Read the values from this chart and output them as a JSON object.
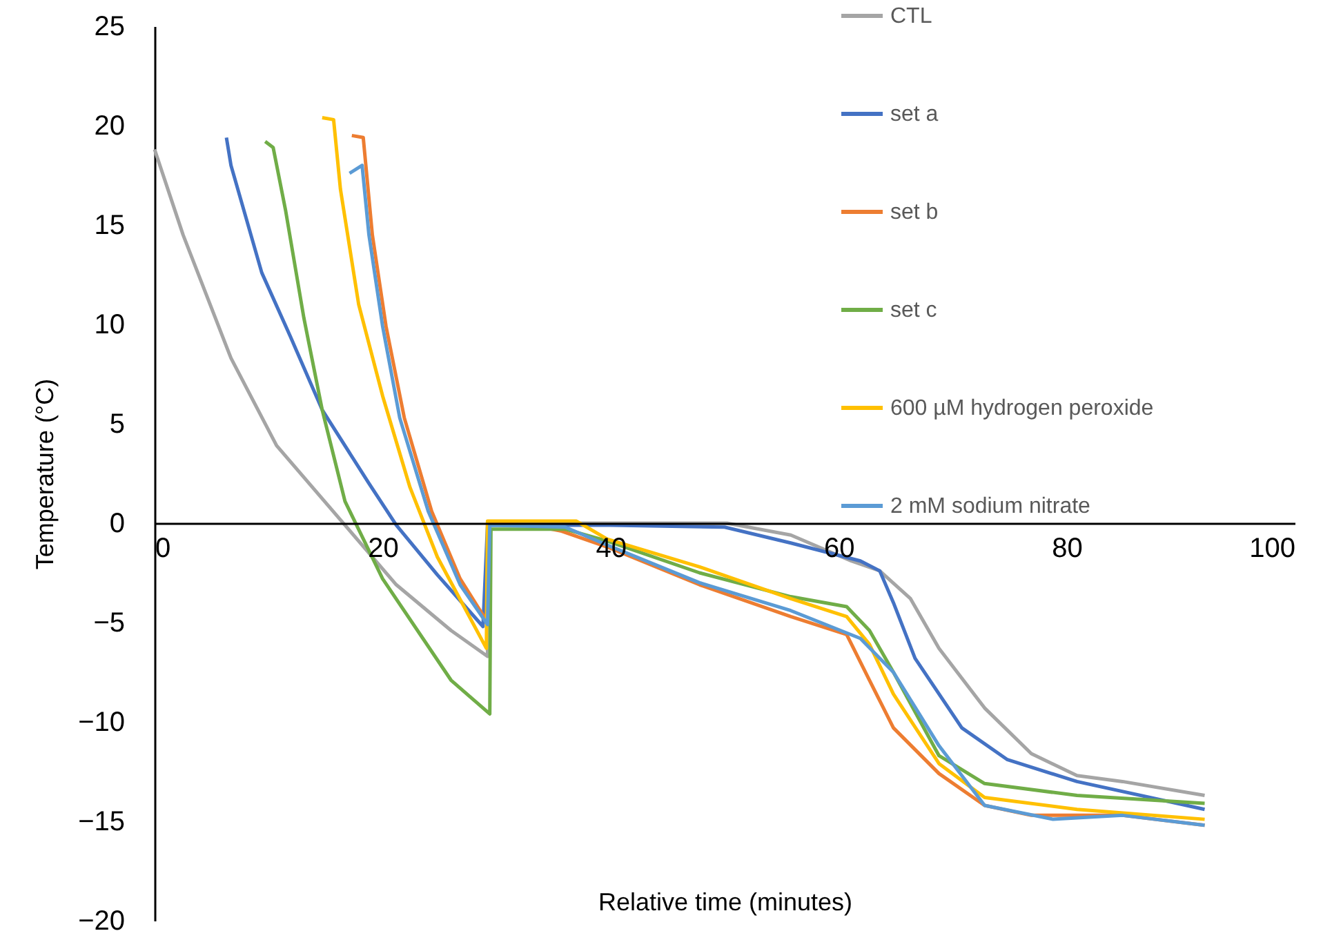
{
  "chart_data": {
    "type": "line",
    "xlabel": "Relative time (minutes)",
    "ylabel": "Temperature (°C)",
    "xlim": [
      0,
      100
    ],
    "xticks": [
      0,
      20,
      40,
      60,
      80,
      100
    ],
    "ylim": [
      -20,
      25
    ],
    "yticks": [
      -20,
      -15,
      -10,
      -5,
      0,
      5,
      10,
      15,
      20,
      25
    ],
    "grid": false,
    "legend": "top right",
    "marker": "none",
    "line_style": "solid",
    "series": [
      {
        "name": "CTL",
        "color": "#a5a5a5",
        "x": [
          0,
          2.5,
          6.7,
          10.7,
          16.7,
          21.2,
          26,
          29.2,
          29.3,
          40,
          50.2,
          55.8,
          61.1,
          63.6,
          66.3,
          68.8,
          72.8,
          76.9,
          80.9,
          84.9,
          92.1
        ],
        "values": [
          18.8,
          14.5,
          8.3,
          3.9,
          -0.1,
          -3.1,
          -5.4,
          -6.7,
          0,
          0,
          0,
          -0.6,
          -1.9,
          -2.4,
          -3.8,
          -6.3,
          -9.3,
          -11.6,
          -12.7,
          -13.0,
          -13.7
        ]
      },
      {
        "name": "set a",
        "color": "#4472c4",
        "x": [
          6.3,
          6.7,
          9.4,
          11.9,
          14.7,
          18.8,
          21.2,
          24.8,
          28.8,
          29.2,
          40,
          50,
          55.8,
          61.9,
          63.6,
          64.8,
          66.7,
          70.8,
          74.8,
          80.9,
          92.1
        ],
        "values": [
          19.4,
          18.0,
          12.6,
          9.4,
          5.7,
          2.0,
          -0.1,
          -2.6,
          -5.2,
          -0.1,
          -0.1,
          -0.2,
          -1.0,
          -1.9,
          -2.4,
          -4.0,
          -6.8,
          -10.3,
          -11.9,
          -13.0,
          -14.4
        ]
      },
      {
        "name": "set b",
        "color": "#ed7d31",
        "x": [
          17.3,
          18.3,
          19.1,
          20.3,
          21.9,
          24.3,
          26.8,
          29.1,
          29.3,
          33,
          35.7,
          39.7,
          47.8,
          55.8,
          60.7,
          62.7,
          64.8,
          68.8,
          72.8,
          76.9,
          84.9,
          92.1
        ],
        "values": [
          19.5,
          19.4,
          14.5,
          9.9,
          5.3,
          0.6,
          -2.8,
          -4.9,
          0,
          -0.1,
          -0.4,
          -1.2,
          -3.1,
          -4.7,
          -5.6,
          -7.9,
          -10.3,
          -12.6,
          -14.2,
          -14.7,
          -14.7,
          -15.2
        ]
      },
      {
        "name": "set c",
        "color": "#70ad47",
        "x": [
          9.7,
          10.4,
          11.5,
          13.1,
          14.7,
          16.7,
          20.0,
          26,
          29.4,
          29.5,
          36,
          39.7,
          47.8,
          55.8,
          60.7,
          62.7,
          64.8,
          68.8,
          72.8,
          80.9,
          92.1
        ],
        "values": [
          19.2,
          18.9,
          15.7,
          10.3,
          5.7,
          1.1,
          -2.8,
          -7.9,
          -9.6,
          -0.3,
          -0.3,
          -0.9,
          -2.5,
          -3.7,
          -4.2,
          -5.4,
          -7.5,
          -11.7,
          -13.1,
          -13.7,
          -14.1
        ]
      },
      {
        "name": "600 µM hydrogen peroxide",
        "color": "#ffc000",
        "x": [
          14.7,
          15.7,
          16.3,
          17.9,
          20.0,
          22.4,
          24.8,
          29.1,
          29.2,
          37,
          39.7,
          47.8,
          55.8,
          60.7,
          62.7,
          64.8,
          68.8,
          72.8,
          80.9,
          92.1
        ],
        "values": [
          20.4,
          20.3,
          16.8,
          11.0,
          6.4,
          1.8,
          -1.7,
          -6.3,
          0.1,
          0.1,
          -0.8,
          -2.2,
          -3.8,
          -4.7,
          -6.1,
          -8.6,
          -12.1,
          -13.8,
          -14.4,
          -14.9
        ]
      },
      {
        "name": "2 mM sodium nitrate",
        "color": "#5b9bd5",
        "x": [
          17.1,
          18.2,
          18.8,
          20.0,
          21.5,
          24,
          26.8,
          29.2,
          29.4,
          36,
          39.7,
          47.8,
          55.8,
          61.9,
          64.8,
          68.8,
          72.8,
          78.8,
          84.9,
          92.1
        ],
        "values": [
          17.6,
          18.0,
          14.5,
          9.9,
          5.3,
          0.6,
          -3.1,
          -5.1,
          -0.1,
          -0.2,
          -1.1,
          -3.0,
          -4.4,
          -5.8,
          -7.5,
          -11.2,
          -14.2,
          -14.9,
          -14.7,
          -15.2
        ]
      }
    ]
  }
}
